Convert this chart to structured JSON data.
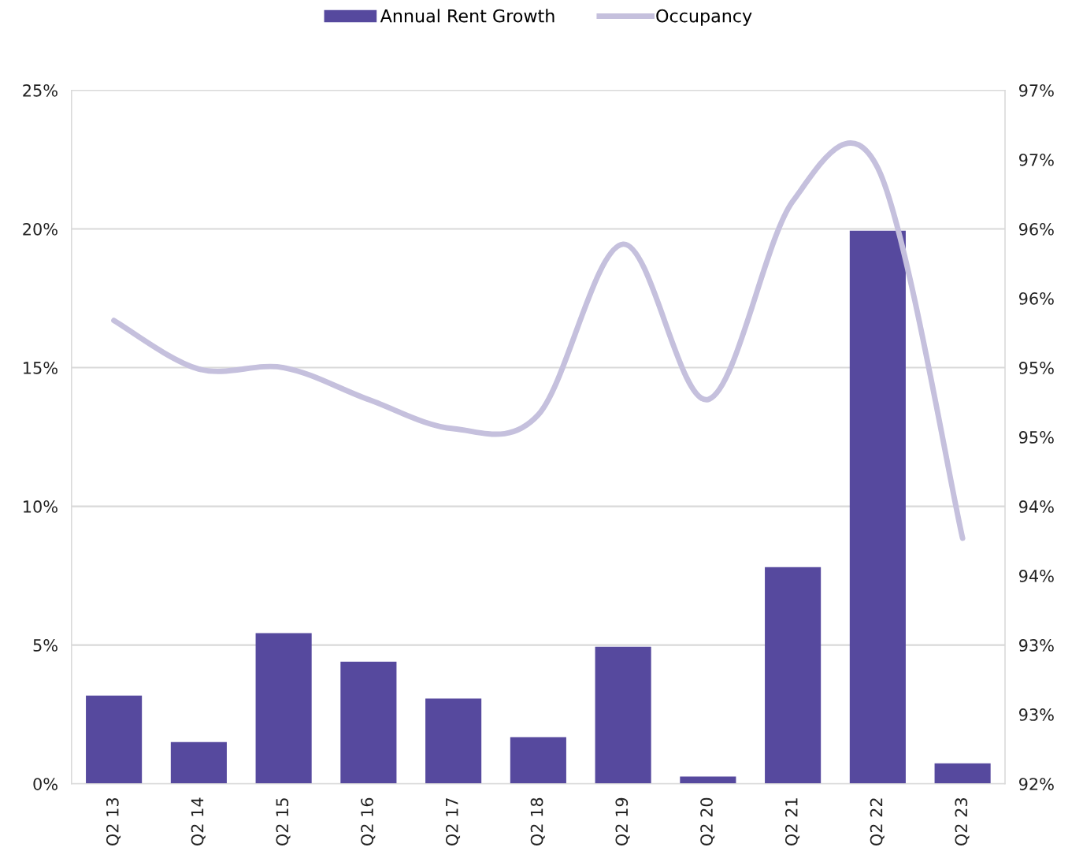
{
  "chart_data": {
    "type": "bar",
    "categories": [
      "Q2 13",
      "Q2 14",
      "Q2 15",
      "Q2 16",
      "Q2 17",
      "Q2 18",
      "Q2 19",
      "Q2 20",
      "Q2 21",
      "Q2 22",
      "Q2 23"
    ],
    "series": [
      {
        "name": "Annual Rent Growth",
        "color": "#56499e",
        "values": [
          3.18,
          1.5,
          5.43,
          4.4,
          3.07,
          1.68,
          4.94,
          0.26,
          7.81,
          19.94,
          0.74
        ]
      },
      {
        "name": "Occupancy",
        "type": "line",
        "axis": "y2",
        "color": "#c5c0dd",
        "values": [
          95.34,
          94.99,
          95.0,
          94.77,
          94.56,
          94.66,
          95.89,
          94.77,
          96.2,
          96.44,
          93.77
        ]
      }
    ],
    "ylim": [
      0,
      25
    ],
    "yticks": [
      {
        "value": 0,
        "label": "0%"
      },
      {
        "value": 5,
        "label": "5%"
      },
      {
        "value": 10,
        "label": "10%"
      },
      {
        "value": 15,
        "label": "15%"
      },
      {
        "value": 20,
        "label": "20%"
      },
      {
        "value": 25,
        "label": "25%"
      }
    ],
    "y2lim": [
      92,
      97
    ],
    "y2ticks": [
      {
        "value": 92,
        "label": "92%"
      },
      {
        "value": 92.5,
        "label": "93%"
      },
      {
        "value": 93,
        "label": "93%"
      },
      {
        "value": 93.5,
        "label": "94%"
      },
      {
        "value": 94,
        "label": "94%"
      },
      {
        "value": 94.5,
        "label": "95%"
      },
      {
        "value": 95,
        "label": "95%"
      },
      {
        "value": 95.5,
        "label": "96%"
      },
      {
        "value": 96,
        "label": "96%"
      },
      {
        "value": 96.5,
        "label": "97%"
      },
      {
        "value": 97,
        "label": "97%"
      }
    ],
    "grid": "y",
    "legend": "top"
  }
}
